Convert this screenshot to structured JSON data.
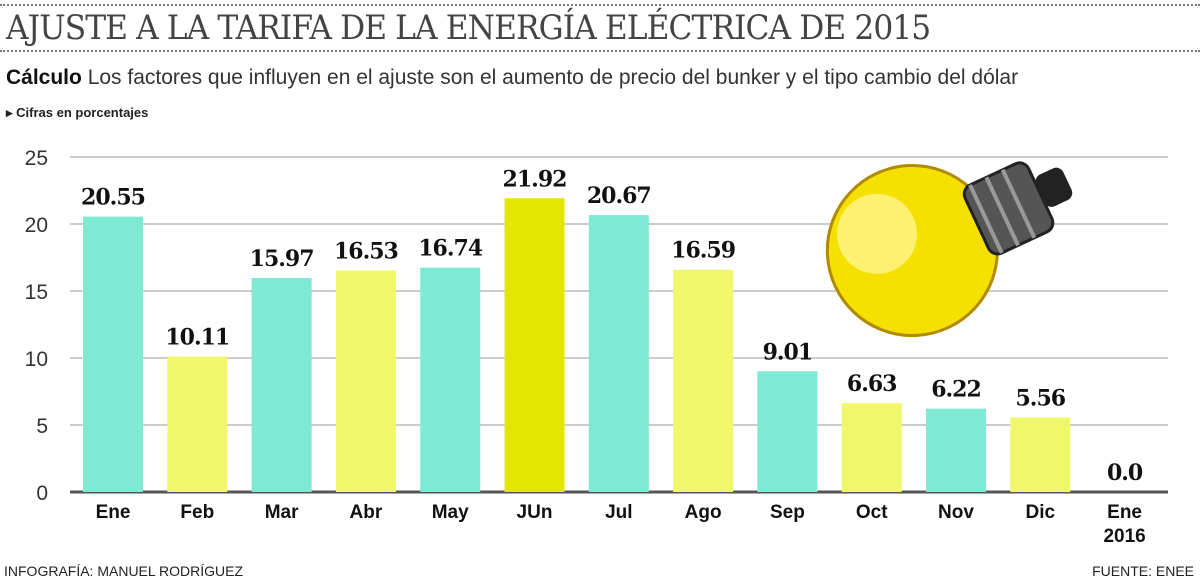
{
  "header": {
    "title": "AJUSTE A LA TARIFA  DE LA ENERGÍA ELÉCTRICA DE 2015",
    "subtitle_bold": "Cálculo",
    "subtitle": " Los factores que influyen en el ajuste son el aumento de precio del bunker y el tipo cambio del dólar",
    "unit_note": "Cifras en porcentajes"
  },
  "footer": {
    "credit": "INFOGRAFÍA: MANUEL RODRÍGUEZ",
    "source": "FUENTE: ENEE"
  },
  "colors": {
    "teal": "#7eead4",
    "yellow": "#f0f76a",
    "highlight": "#e3e600"
  },
  "chart_data": {
    "type": "bar",
    "title": "AJUSTE A LA TARIFA DE LA ENERGÍA ELÉCTRICA DE 2015",
    "ylabel": "Cifras en porcentajes",
    "ylim": [
      0,
      25
    ],
    "yticks": [
      0,
      5,
      10,
      15,
      20,
      25
    ],
    "grid": true,
    "categories": [
      "Ene",
      "Feb",
      "Mar",
      "Abr",
      "May",
      "JUn",
      "Jul",
      "Ago",
      "Sep",
      "Oct",
      "Nov",
      "Dic",
      "Ene 2016"
    ],
    "values": [
      20.55,
      10.11,
      15.97,
      16.53,
      16.74,
      21.92,
      20.67,
      16.59,
      9.01,
      6.63,
      6.22,
      5.56,
      0.0
    ],
    "labels": [
      "20.55",
      "10.11",
      "15.97",
      "16.53",
      "16.74",
      "21.92",
      "20.67",
      "16.59",
      "9.01",
      "6.63",
      "6.22",
      "5.56",
      "0.0"
    ],
    "bar_colors": [
      "teal",
      "yellow",
      "teal",
      "yellow",
      "teal",
      "highlight",
      "teal",
      "yellow",
      "teal",
      "yellow",
      "teal",
      "yellow",
      "teal"
    ]
  }
}
